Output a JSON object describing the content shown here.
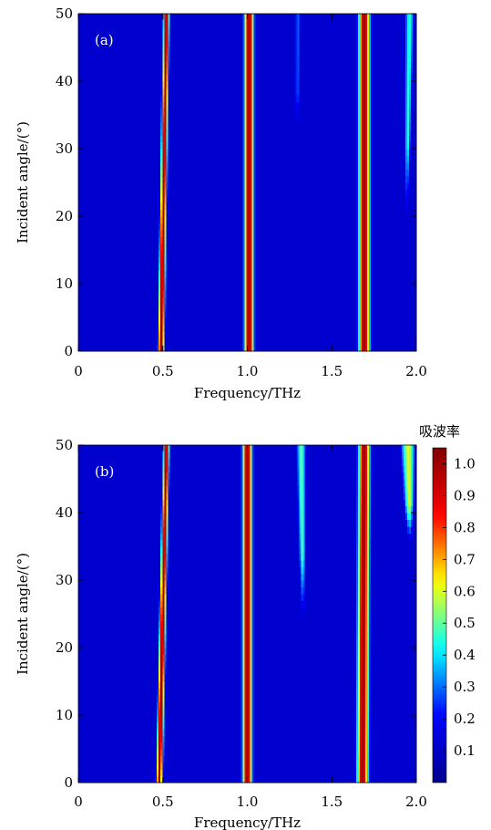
{
  "chart_data": [
    {
      "type": "heatmap",
      "panel_label": "(a)",
      "xlabel": "Frequency/THz",
      "ylabel": "Incident angle/(°)",
      "xlim": [
        0,
        2.0
      ],
      "ylim": [
        0,
        50
      ],
      "xticks": [
        "0",
        "0.5",
        "1.0",
        "1.5",
        "2.0"
      ],
      "yticks": [
        "0",
        "10",
        "20",
        "30",
        "40",
        "50"
      ],
      "background_absorption": 0.12,
      "bands": [
        {
          "f0": 0.49,
          "f50": 0.52,
          "peak": 1.0,
          "width0": 0.012,
          "width50": 0.012,
          "angle_start": 0,
          "angle_end": 50
        },
        {
          "f0": 1.01,
          "f50": 1.01,
          "peak": 1.0,
          "width0": 0.02,
          "width50": 0.02,
          "angle_start": 0,
          "angle_end": 50
        },
        {
          "f0": 1.69,
          "f50": 1.69,
          "peak": 1.0,
          "width0": 0.024,
          "width50": 0.024,
          "angle_start": 0,
          "angle_end": 50
        },
        {
          "f0": 1.29,
          "f50": 1.3,
          "peak": 0.3,
          "width0": 0.006,
          "width50": 0.012,
          "angle_start": 28,
          "angle_end": 50
        },
        {
          "f0": 1.93,
          "f50": 1.96,
          "peak": 0.45,
          "width0": 0.006,
          "width50": 0.02,
          "angle_start": 15,
          "angle_end": 50
        }
      ]
    },
    {
      "type": "heatmap",
      "panel_label": "(b)",
      "xlabel": "Frequency/THz",
      "ylabel": "Incident angle/(°)",
      "xlim": [
        0,
        2.0
      ],
      "ylim": [
        0,
        50
      ],
      "xticks": [
        "0",
        "0.5",
        "1.0",
        "1.5",
        "2.0"
      ],
      "yticks": [
        "0",
        "10",
        "20",
        "30",
        "40",
        "50"
      ],
      "background_absorption": 0.12,
      "bands": [
        {
          "f0": 0.48,
          "f50": 0.52,
          "peak": 1.0,
          "width0": 0.012,
          "width50": 0.012,
          "angle_start": 0,
          "angle_end": 50
        },
        {
          "f0": 1.0,
          "f50": 1.0,
          "peak": 1.0,
          "width0": 0.02,
          "width50": 0.02,
          "angle_start": 0,
          "angle_end": 50
        },
        {
          "f0": 1.68,
          "f50": 1.69,
          "peak": 1.0,
          "width0": 0.024,
          "width50": 0.024,
          "angle_start": 0,
          "angle_end": 50
        },
        {
          "f0": 1.34,
          "f50": 1.32,
          "peak": 0.5,
          "width0": 0.006,
          "width50": 0.02,
          "angle_start": 20,
          "angle_end": 50
        },
        {
          "f0": 1.99,
          "f50": 1.95,
          "peak": 0.6,
          "width0": 0.01,
          "width50": 0.03,
          "angle_start": 34,
          "angle_end": 50
        }
      ]
    }
  ],
  "colorbar": {
    "title": "吸波率",
    "range": [
      0,
      1.05
    ],
    "ticks": [
      "0.1",
      "0.2",
      "0.3",
      "0.4",
      "0.5",
      "0.6",
      "0.7",
      "0.8",
      "0.9",
      "1.0"
    ],
    "colormap": [
      "#00008f",
      "#0000ff",
      "#00ffff",
      "#ffff00",
      "#ff0000",
      "#800000"
    ]
  }
}
